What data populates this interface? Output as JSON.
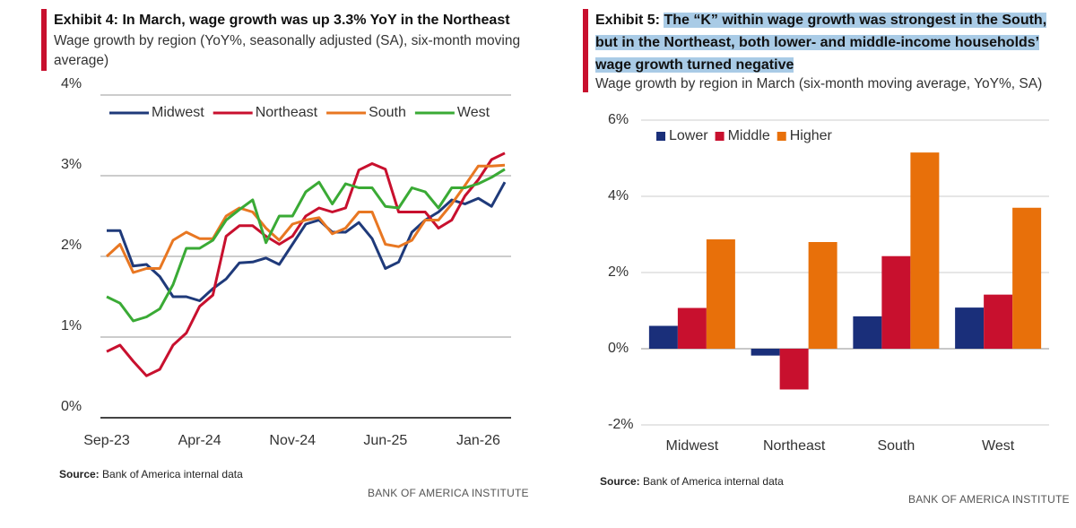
{
  "chart_data": [
    {
      "type": "line",
      "exhibit": "Exhibit 4:",
      "title": "In March, wage growth was up 3.3% YoY in the Northeast",
      "subtitle": "Wage growth by region (YoY%, seasonally adjusted (SA), six-month moving average)",
      "categories": [
        "Sep-23",
        null,
        null,
        null,
        null,
        null,
        null,
        "Apr-24",
        null,
        null,
        null,
        null,
        null,
        null,
        "Nov-24",
        null,
        null,
        null,
        null,
        null,
        null,
        "Jun-25",
        null,
        null,
        null,
        null,
        null,
        null,
        "Jan-26",
        null,
        null
      ],
      "series": [
        {
          "name": "Midwest",
          "color": "#1f3a7a",
          "values": [
            2.32,
            2.32,
            1.88,
            1.9,
            1.75,
            1.5,
            1.5,
            1.45,
            1.6,
            1.72,
            1.92,
            1.93,
            1.98,
            1.9,
            2.15,
            2.4,
            2.45,
            2.3,
            2.3,
            2.42,
            2.22,
            1.85,
            1.93,
            2.3,
            2.45,
            2.55,
            2.7,
            2.65,
            2.72,
            2.62,
            2.92
          ]
        },
        {
          "name": "Northeast",
          "color": "#c8102e",
          "values": [
            0.82,
            0.9,
            0.7,
            0.52,
            0.6,
            0.9,
            1.05,
            1.38,
            1.52,
            2.25,
            2.38,
            2.38,
            2.25,
            2.15,
            2.25,
            2.5,
            2.6,
            2.55,
            2.6,
            3.07,
            3.15,
            3.08,
            2.55,
            2.55,
            2.55,
            2.35,
            2.45,
            2.75,
            2.95,
            3.2,
            3.28
          ]
        },
        {
          "name": "South",
          "color": "#e87722",
          "values": [
            2.0,
            2.15,
            1.8,
            1.85,
            1.85,
            2.2,
            2.3,
            2.22,
            2.22,
            2.5,
            2.6,
            2.55,
            2.35,
            2.2,
            2.4,
            2.45,
            2.48,
            2.28,
            2.35,
            2.55,
            2.55,
            2.15,
            2.12,
            2.2,
            2.45,
            2.45,
            2.65,
            2.88,
            3.12,
            3.12,
            3.13
          ]
        },
        {
          "name": "West",
          "color": "#3aaa35",
          "values": [
            1.5,
            1.42,
            1.2,
            1.25,
            1.35,
            1.65,
            2.1,
            2.1,
            2.2,
            2.45,
            2.58,
            2.7,
            2.17,
            2.5,
            2.5,
            2.8,
            2.92,
            2.65,
            2.9,
            2.85,
            2.85,
            2.62,
            2.6,
            2.85,
            2.8,
            2.6,
            2.85,
            2.85,
            2.9,
            2.98,
            3.08
          ]
        }
      ],
      "ylim": [
        0,
        4
      ],
      "yticks": [
        {
          "value": 0,
          "label": "0%"
        },
        {
          "value": 1,
          "label": "1%"
        },
        {
          "value": 2,
          "label": "2%"
        },
        {
          "value": 3,
          "label": "3%"
        },
        {
          "value": 4,
          "label": "4%"
        }
      ],
      "grid": true,
      "legend": "top",
      "source_label": "Source:",
      "source": "Bank of America internal data",
      "footer": "BANK OF AMERICA INSTITUTE"
    },
    {
      "type": "bar",
      "exhibit": "Exhibit 5:",
      "title": "The “K” within wage growth was strongest in the South, but in the Northeast, both lower- and middle-income households’ wage growth turned negative",
      "subtitle": "Wage growth by region in March (six-month moving average, YoY%, SA)",
      "categories": [
        "Midwest",
        "Northeast",
        "South",
        "West"
      ],
      "series": [
        {
          "name": "Lower",
          "color": "#1a2f7a",
          "values": [
            0.6,
            -0.18,
            0.85,
            1.08
          ]
        },
        {
          "name": "Middle",
          "color": "#c8102e",
          "values": [
            1.07,
            -1.07,
            2.43,
            1.42
          ]
        },
        {
          "name": "Higher",
          "color": "#e8700a",
          "values": [
            2.87,
            2.8,
            5.15,
            3.7
          ]
        }
      ],
      "ylim": [
        -2,
        6
      ],
      "yticks": [
        {
          "value": -2,
          "label": "-2%"
        },
        {
          "value": 0,
          "label": "0%"
        },
        {
          "value": 2,
          "label": "2%"
        },
        {
          "value": 4,
          "label": "4%"
        },
        {
          "value": 6,
          "label": "6%"
        }
      ],
      "grid": true,
      "legend": "top-left",
      "source_label": "Source:",
      "source": "Bank of America internal data",
      "footer": "BANK OF AMERICA INSTITUTE"
    }
  ]
}
